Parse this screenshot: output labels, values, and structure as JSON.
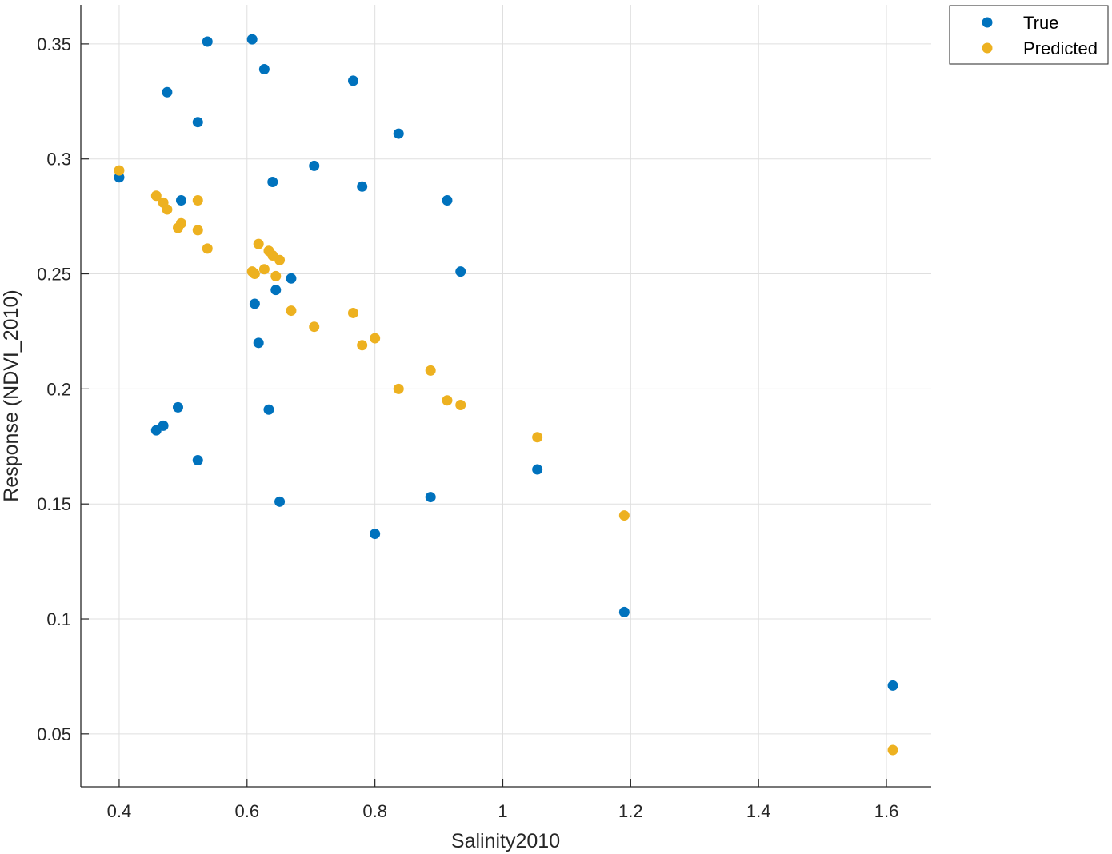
{
  "chart_data": {
    "type": "scatter",
    "title": "",
    "xlabel": "Salinity2010",
    "ylabel": "Response (NDVI_2010)",
    "xlim": [
      0.34,
      1.67
    ],
    "ylim": [
      0.027,
      0.367
    ],
    "xticks": [
      0.4,
      0.6,
      0.8,
      1.0,
      1.2,
      1.4,
      1.6
    ],
    "xtick_labels": [
      "0.4",
      "0.6",
      "0.8",
      "1",
      "1.2",
      "1.4",
      "1.6"
    ],
    "yticks": [
      0.05,
      0.1,
      0.15,
      0.2,
      0.25,
      0.3,
      0.35
    ],
    "ytick_labels": [
      "0.05",
      "0.1",
      "0.15",
      "0.2",
      "0.25",
      "0.3",
      "0.35"
    ],
    "grid": true,
    "legend_position": "outside-top-right",
    "series": [
      {
        "name": "True",
        "color": "#0072BD",
        "points": [
          [
            0.4,
            0.292
          ],
          [
            0.458,
            0.182
          ],
          [
            0.469,
            0.184
          ],
          [
            0.475,
            0.329
          ],
          [
            0.492,
            0.192
          ],
          [
            0.497,
            0.282
          ],
          [
            0.523,
            0.316
          ],
          [
            0.523,
            0.169
          ],
          [
            0.538,
            0.351
          ],
          [
            0.608,
            0.352
          ],
          [
            0.612,
            0.237
          ],
          [
            0.618,
            0.22
          ],
          [
            0.627,
            0.339
          ],
          [
            0.634,
            0.191
          ],
          [
            0.64,
            0.29
          ],
          [
            0.645,
            0.243
          ],
          [
            0.651,
            0.151
          ],
          [
            0.669,
            0.248
          ],
          [
            0.705,
            0.297
          ],
          [
            0.766,
            0.334
          ],
          [
            0.78,
            0.288
          ],
          [
            0.8,
            0.137
          ],
          [
            0.837,
            0.311
          ],
          [
            0.887,
            0.153
          ],
          [
            0.913,
            0.282
          ],
          [
            0.934,
            0.251
          ],
          [
            1.054,
            0.165
          ],
          [
            1.19,
            0.103
          ],
          [
            1.61,
            0.071
          ]
        ]
      },
      {
        "name": "Predicted",
        "color": "#EDB120",
        "points": [
          [
            0.4,
            0.295
          ],
          [
            0.458,
            0.284
          ],
          [
            0.469,
            0.281
          ],
          [
            0.475,
            0.278
          ],
          [
            0.492,
            0.27
          ],
          [
            0.497,
            0.272
          ],
          [
            0.523,
            0.282
          ],
          [
            0.523,
            0.269
          ],
          [
            0.538,
            0.261
          ],
          [
            0.608,
            0.251
          ],
          [
            0.612,
            0.25
          ],
          [
            0.618,
            0.263
          ],
          [
            0.627,
            0.252
          ],
          [
            0.634,
            0.26
          ],
          [
            0.64,
            0.258
          ],
          [
            0.645,
            0.249
          ],
          [
            0.651,
            0.256
          ],
          [
            0.669,
            0.234
          ],
          [
            0.705,
            0.227
          ],
          [
            0.766,
            0.233
          ],
          [
            0.78,
            0.219
          ],
          [
            0.8,
            0.222
          ],
          [
            0.837,
            0.2
          ],
          [
            0.887,
            0.208
          ],
          [
            0.913,
            0.195
          ],
          [
            0.934,
            0.193
          ],
          [
            1.054,
            0.179
          ],
          [
            1.19,
            0.145
          ],
          [
            1.61,
            0.043
          ]
        ]
      }
    ]
  }
}
